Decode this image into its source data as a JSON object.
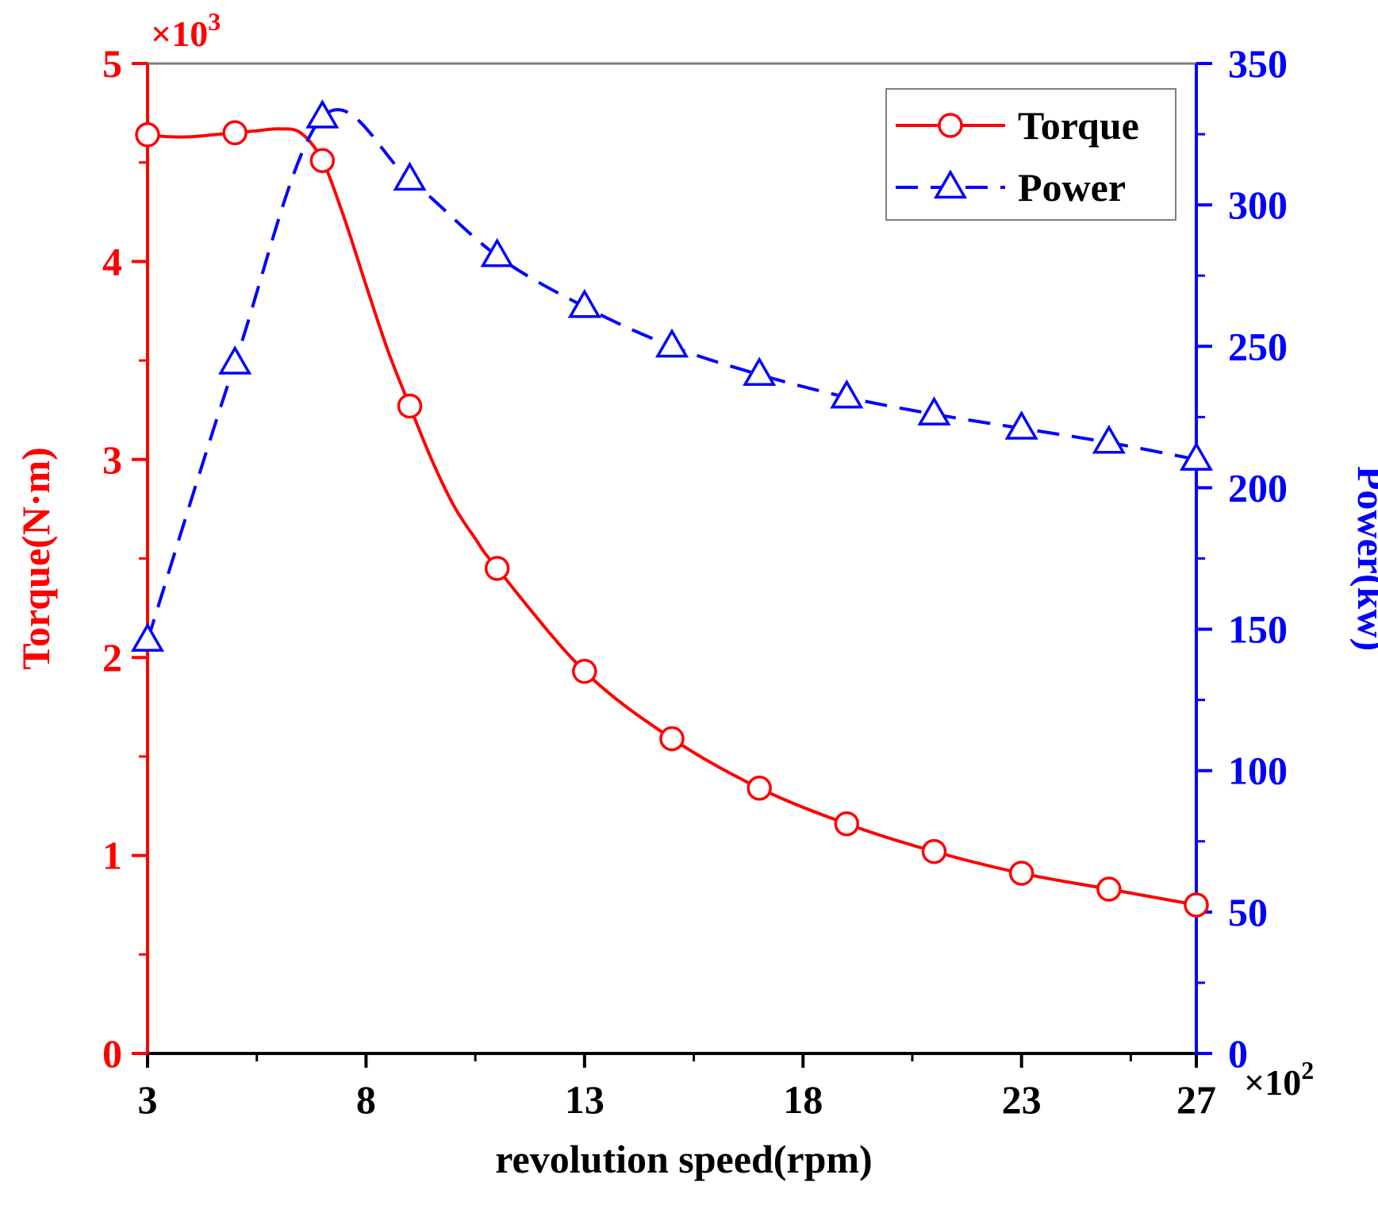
{
  "chart_data": {
    "type": "line",
    "title": "",
    "xlabel": "revolution speed(rpm)",
    "x_multiplier": "×10",
    "x_multiplier_exp": "2",
    "xlim": [
      3,
      27
    ],
    "x_ticks": [
      3,
      8,
      13,
      18,
      23,
      27
    ],
    "y_left": {
      "label": "Torque(N·m)",
      "multiplier": "×10",
      "multiplier_exp": "3",
      "lim": [
        0,
        5
      ],
      "ticks": [
        0,
        1,
        2,
        3,
        4,
        5
      ],
      "color": "#ff0000"
    },
    "y_right": {
      "label": "Power(kw)",
      "lim": [
        0,
        350
      ],
      "ticks": [
        0,
        50,
        100,
        150,
        200,
        250,
        300,
        350
      ],
      "color": "#0000ff"
    },
    "legend_position": "top-right",
    "series": [
      {
        "name": "Torque",
        "axis": "left",
        "color": "#ff0000",
        "line_style": "solid",
        "marker": "circle",
        "x": [
          3,
          5,
          7,
          9,
          11,
          13,
          15,
          17,
          19,
          21,
          23,
          25,
          27
        ],
        "values": [
          4.64,
          4.65,
          4.51,
          3.27,
          2.45,
          1.93,
          1.59,
          1.34,
          1.16,
          1.02,
          0.91,
          0.83,
          0.75
        ],
        "smooth_path": [
          [
            3,
            4.64
          ],
          [
            3.5,
            4.63
          ],
          [
            4,
            4.63
          ],
          [
            4.5,
            4.64
          ],
          [
            5,
            4.65
          ],
          [
            5.5,
            4.66
          ],
          [
            6,
            4.67
          ],
          [
            6.5,
            4.65
          ],
          [
            7,
            4.51
          ],
          [
            7.5,
            4.22
          ],
          [
            8,
            3.88
          ],
          [
            8.5,
            3.55
          ],
          [
            9,
            3.27
          ],
          [
            9.5,
            3.0
          ],
          [
            10,
            2.77
          ],
          [
            10.5,
            2.6
          ],
          [
            11,
            2.45
          ]
        ]
      },
      {
        "name": "Power",
        "axis": "right",
        "color": "#0000ff",
        "line_style": "dashed",
        "marker": "triangle",
        "x": [
          3,
          5,
          7,
          9,
          11,
          13,
          15,
          17,
          19,
          21,
          23,
          25,
          27
        ],
        "values": [
          146,
          244,
          331,
          309,
          282,
          264,
          250,
          240,
          232,
          226,
          221,
          216,
          210
        ]
      }
    ]
  }
}
